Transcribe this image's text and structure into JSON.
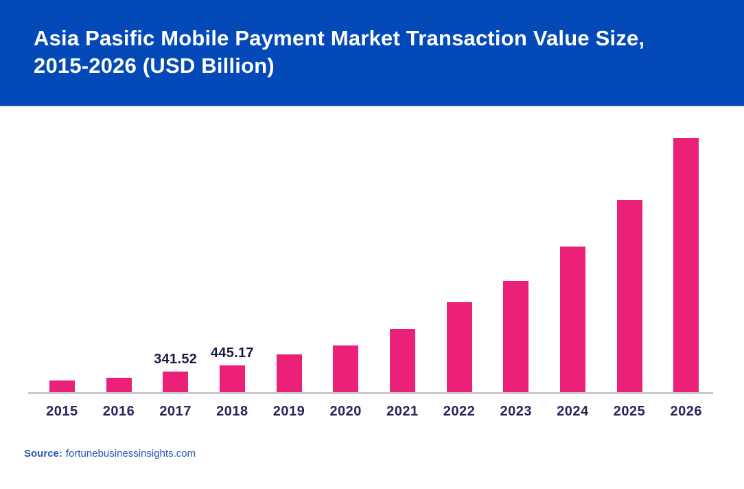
{
  "header": {
    "title_line1": "Asia Pasific Mobile Payment Market Transaction Value Size,",
    "title_line2": "2015-2026 (USD Billion)",
    "bg_color": "#0449B8",
    "text_color": "#FFFFFF"
  },
  "chart_data": {
    "type": "bar",
    "title": "Asia Pasific Mobile Payment Market Transaction Value Size, 2015-2026 (USD Billion)",
    "categories": [
      "2015",
      "2016",
      "2017",
      "2018",
      "2019",
      "2020",
      "2021",
      "2022",
      "2023",
      "2024",
      "2025",
      "2026"
    ],
    "values": [
      190,
      240,
      341.52,
      445.17,
      625,
      775,
      1050,
      1500,
      1850,
      2430,
      3200,
      4230
    ],
    "data_labels": [
      "",
      "",
      "341.52",
      "445.17",
      "",
      "",
      "",
      "",
      "",
      "",
      "",
      ""
    ],
    "xlabel": "",
    "ylabel": "",
    "ylim": [
      0,
      4300
    ],
    "grid": false,
    "legend": null,
    "bar_color": "#EB2077",
    "axis_line_color": "#C9C9C9",
    "tick_label_color": "#2A2559",
    "value_label_color": "#1E1B45"
  },
  "footer": {
    "source_label": "Source:",
    "source_value": "fortunebusinessinsights.com",
    "color": "#2357B1"
  }
}
